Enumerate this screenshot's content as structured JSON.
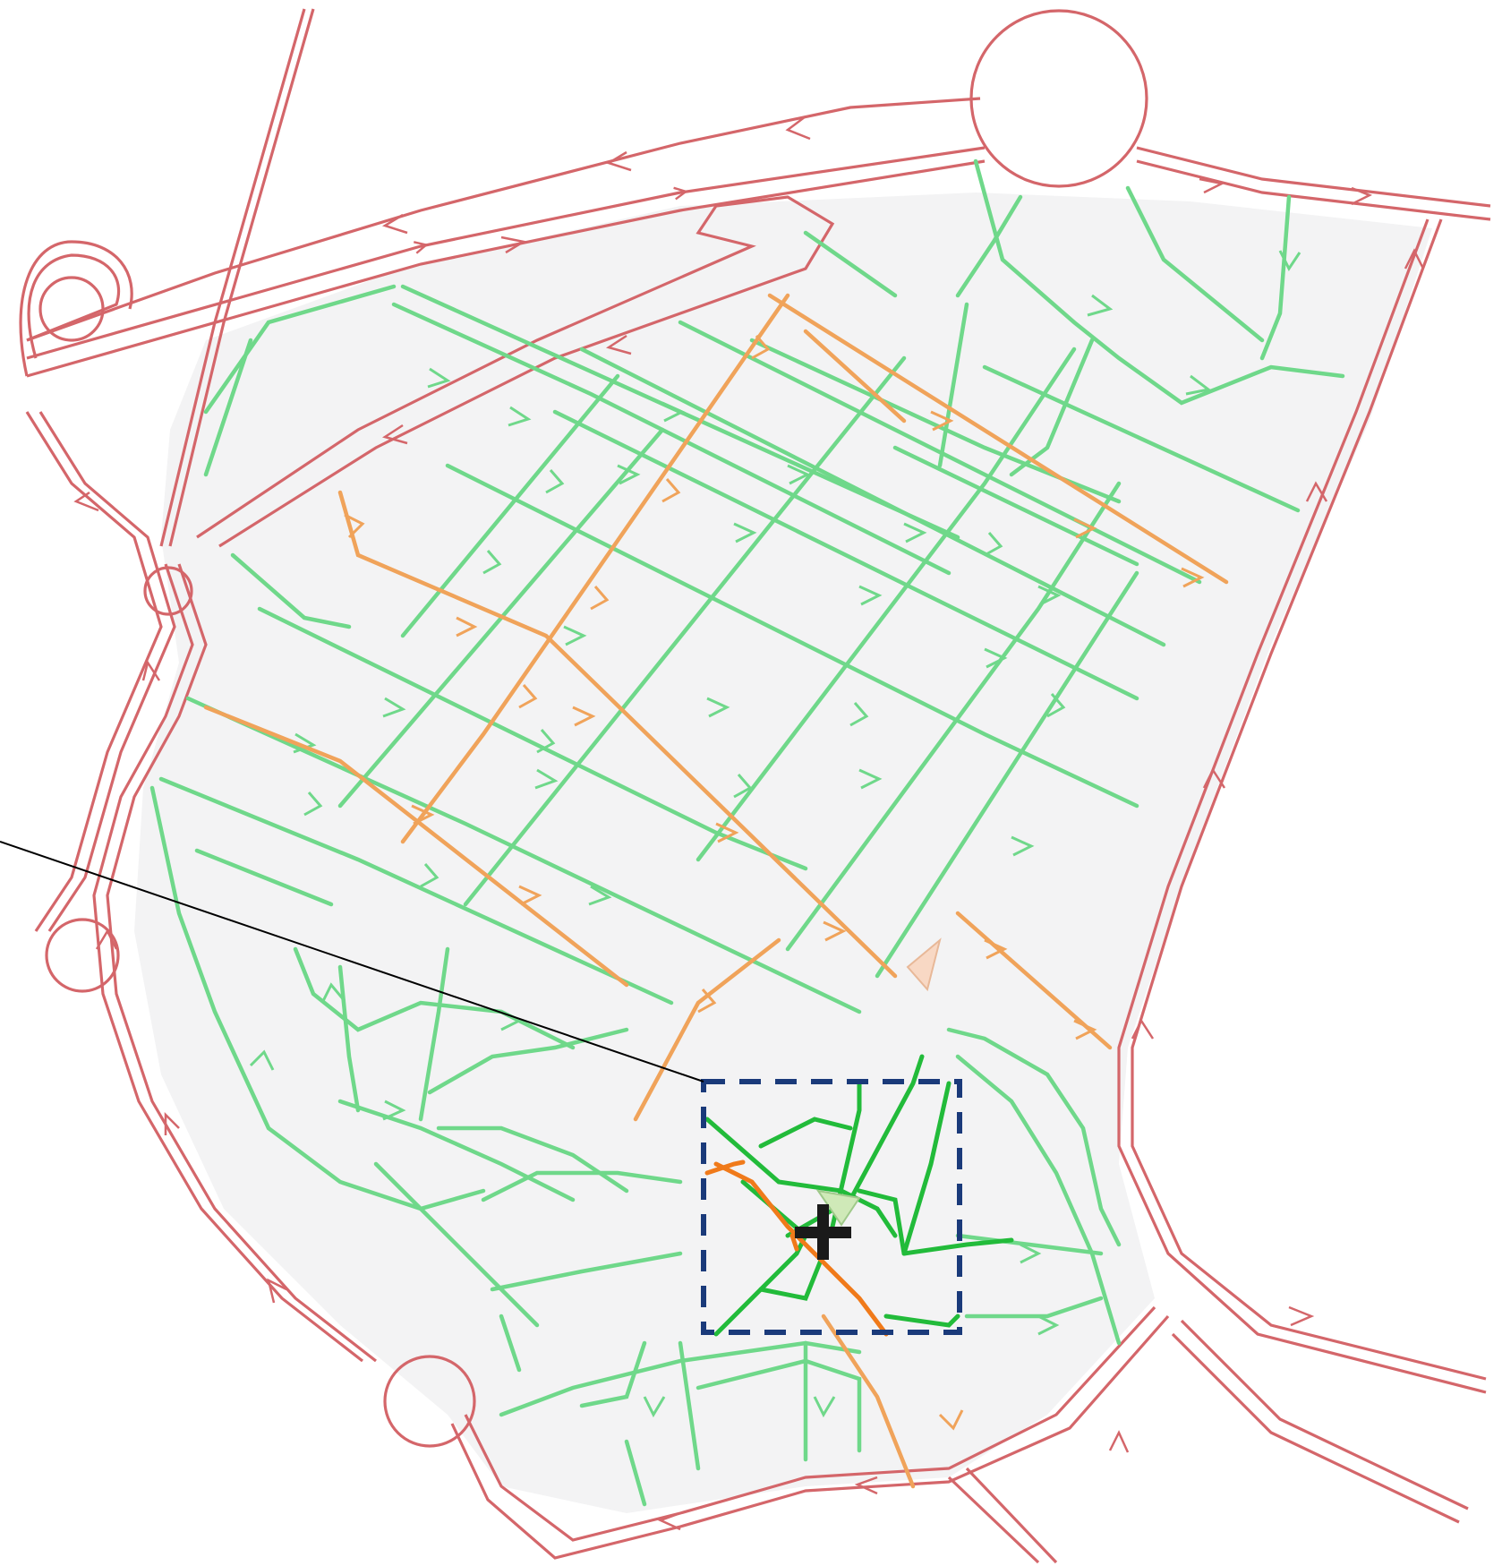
{
  "map": {
    "colors": {
      "background": "#ffffff",
      "land_area": "#f3f3f4",
      "major_road": "#d4666a",
      "secondary_path": "#f0a35a",
      "local_path": "#6fd88a",
      "highlight_path_green": "#22bb3a",
      "highlight_path_orange": "#f07a1a",
      "selection_box": "#1a3a7a",
      "cursor": "#1a1a1a",
      "leader_line": "#000000",
      "marker_light_orange": "#f8d8c4",
      "marker_light_green": "#cfe9b8"
    },
    "elements": {
      "roundabouts": [
        "roundabout-northeast",
        "roundabout-northwest",
        "roundabout-west-upper",
        "roundabout-west-lower",
        "roundabout-south"
      ],
      "markers": [
        "direction-marker-east",
        "direction-marker-center"
      ],
      "overlay": [
        "selection-box",
        "crosshair-cursor",
        "leader-line"
      ]
    }
  }
}
